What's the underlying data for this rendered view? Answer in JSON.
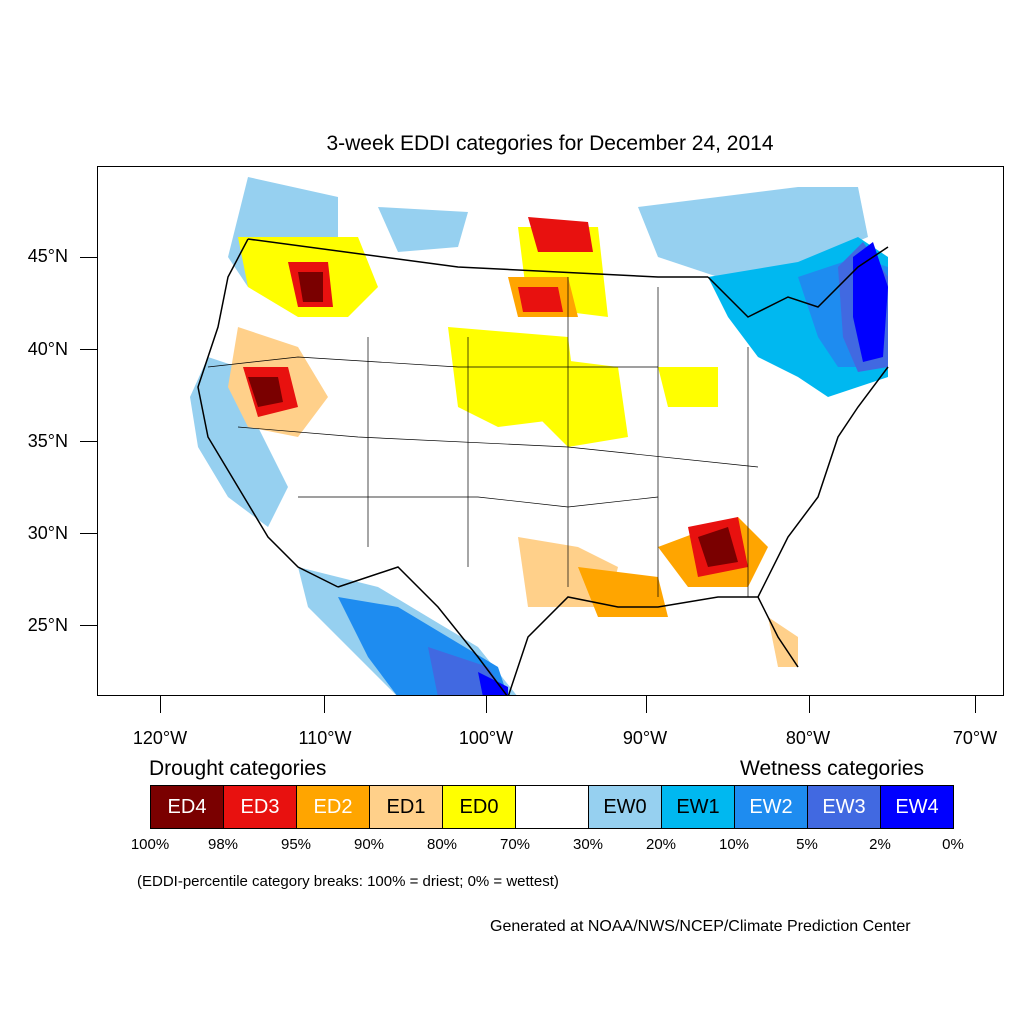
{
  "title": "3-week EDDI categories for December 24, 2014",
  "lat_labels": [
    "45°N",
    "40°N",
    "35°N",
    "30°N",
    "25°N"
  ],
  "lon_labels": [
    "120°W",
    "110°W",
    "100°W",
    "90°W",
    "80°W",
    "70°W"
  ],
  "legend": {
    "drought_title": "Drought categories",
    "wetness_title": "Wetness categories",
    "categories": [
      {
        "label": "ED4",
        "color": "#7a0000",
        "text_color": "#ffffff"
      },
      {
        "label": "ED3",
        "color": "#e8110f",
        "text_color": "#ffffff"
      },
      {
        "label": "ED2",
        "color": "#ffa500",
        "text_color": "#ffffff"
      },
      {
        "label": "ED1",
        "color": "#ffd08a",
        "text_color": "#000000"
      },
      {
        "label": "ED0",
        "color": "#ffff00",
        "text_color": "#000000"
      },
      {
        "label": "",
        "color": "#ffffff",
        "text_color": "#000000"
      },
      {
        "label": "EW0",
        "color": "#96d0f0",
        "text_color": "#000000"
      },
      {
        "label": "EW1",
        "color": "#00b8f0",
        "text_color": "#000000"
      },
      {
        "label": "EW2",
        "color": "#1e8cf0",
        "text_color": "#ffffff"
      },
      {
        "label": "EW3",
        "color": "#4169e1",
        "text_color": "#ffffff"
      },
      {
        "label": "EW4",
        "color": "#0000ff",
        "text_color": "#ffffff"
      }
    ],
    "breaks": [
      "100%",
      "98%",
      "95%",
      "90%",
      "80%",
      "70%",
      "30%",
      "20%",
      "10%",
      "5%",
      "2%",
      "0%"
    ]
  },
  "note": "(EDDI-percentile category breaks: 100% = driest; 0% = wettest)",
  "credit": "Generated at NOAA/NWS/NCEP/Climate Prediction Center"
}
